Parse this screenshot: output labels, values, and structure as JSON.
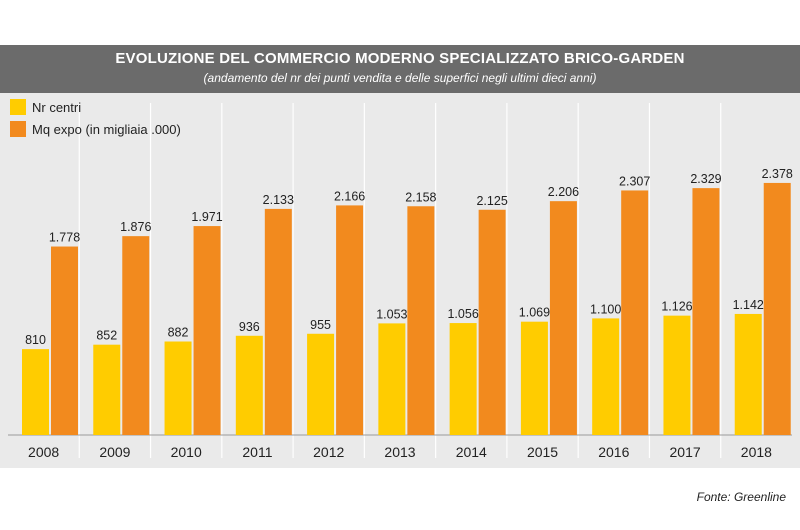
{
  "header": {
    "title": "EVOLUZIONE DEL COMMERCIO MODERNO SPECIALIZZATO BRICO-GARDEN",
    "subtitle": "(andamento del nr dei punti vendita e delle superfici negli ultimi dieci anni)"
  },
  "source": "Fonte: Greenline",
  "colors": {
    "header_bg": "#6b6b6b",
    "plot_bg": "#eaeaea",
    "nr_centri": "#ffcc00",
    "mq_expo": "#f28a1e"
  },
  "chart_data": {
    "type": "bar",
    "title": "EVOLUZIONE DEL COMMERCIO MODERNO SPECIALIZZATO BRICO-GARDEN",
    "xlabel": "",
    "ylabel": "",
    "ylim": [
      0,
      2500
    ],
    "legend_position": "top-left",
    "grid": false,
    "categories": [
      "2008",
      "2009",
      "2010",
      "2011",
      "2012",
      "2013",
      "2014",
      "2015",
      "2016",
      "2017",
      "2018"
    ],
    "series": [
      {
        "name": "Nr centri",
        "color": "#ffcc00",
        "values": [
          810,
          852,
          882,
          936,
          955,
          1053,
          1056,
          1069,
          1100,
          1126,
          1142
        ],
        "labels": [
          "810",
          "852",
          "882",
          "936",
          "955",
          "1.053",
          "1.056",
          "1.069",
          "1.100",
          "1.126",
          "1.142"
        ]
      },
      {
        "name": "Mq expo (in migliaia .000)",
        "color": "#f28a1e",
        "values": [
          1778,
          1876,
          1971,
          2133,
          2166,
          2158,
          2125,
          2206,
          2307,
          2329,
          2378
        ],
        "labels": [
          "1.778",
          "1.876",
          "1.971",
          "2.133",
          "2.166",
          "2.158",
          "2.125",
          "2.206",
          "2.307",
          "2.329",
          "2.378"
        ]
      }
    ]
  }
}
